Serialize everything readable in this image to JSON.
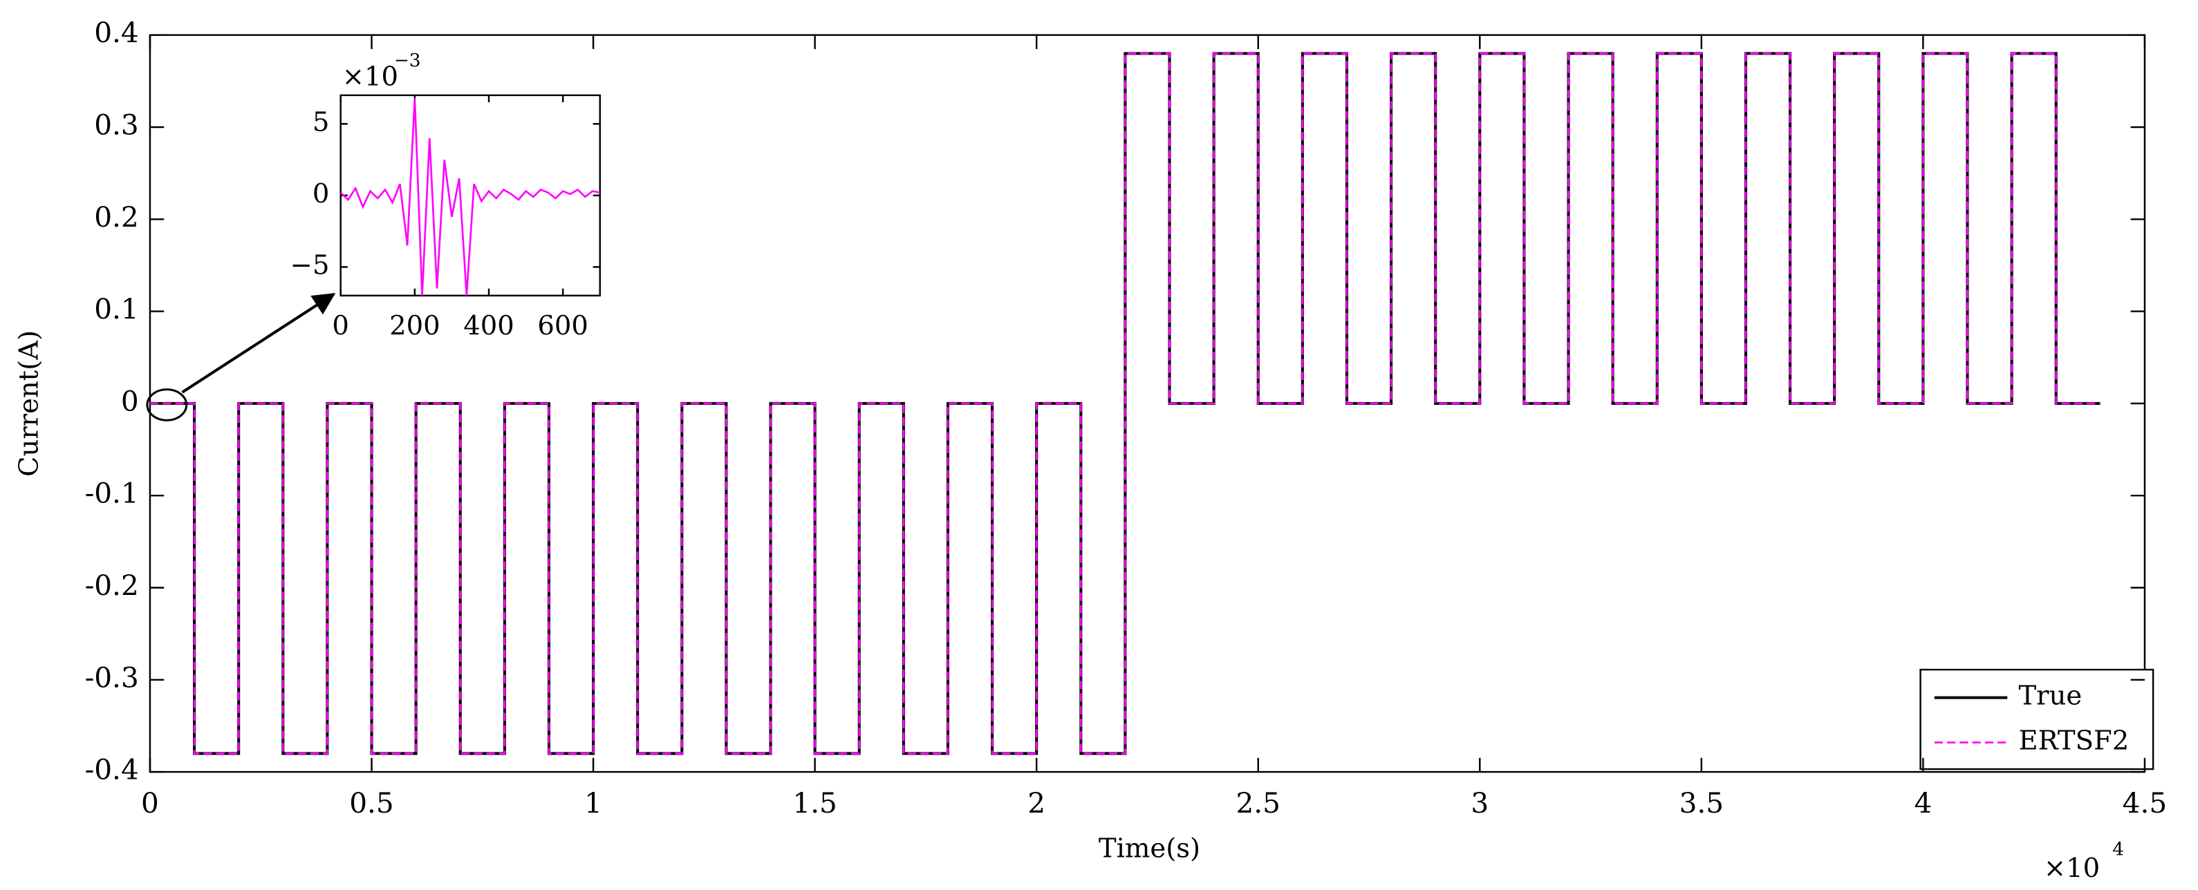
{
  "chart_data": {
    "type": "line",
    "xlabel": "Time(s)",
    "ylabel": "Current(A)",
    "x_multiplier": {
      "base": "×10",
      "exp": "4"
    },
    "xlim": [
      0,
      45000
    ],
    "ylim": [
      -0.4,
      0.4
    ],
    "xticks": [
      0,
      {
        "value": 5000,
        "label": "0.5"
      },
      {
        "value": 10000,
        "label": "1"
      },
      {
        "value": 15000,
        "label": "1.5"
      },
      {
        "value": 20000,
        "label": "2"
      },
      {
        "value": 25000,
        "label": "2.5"
      },
      {
        "value": 30000,
        "label": "3"
      },
      {
        "value": 35000,
        "label": "3.5"
      },
      {
        "value": 40000,
        "label": "4"
      },
      {
        "value": 45000,
        "label": "4.5"
      }
    ],
    "yticks": [
      -0.4,
      -0.3,
      -0.2,
      -0.1,
      0,
      0.1,
      0.2,
      0.3,
      0.4
    ],
    "legend": "lower right",
    "x": [
      0,
      1000,
      1000,
      2000,
      2000,
      3000,
      3000,
      4000,
      4000,
      5000,
      5000,
      6000,
      6000,
      7000,
      7000,
      8000,
      8000,
      9000,
      9000,
      10000,
      10000,
      11000,
      11000,
      12000,
      12000,
      13000,
      13000,
      14000,
      14000,
      15000,
      15000,
      16000,
      16000,
      17000,
      17000,
      18000,
      18000,
      19000,
      19000,
      20000,
      20000,
      21000,
      21000,
      22000,
      22000,
      23000,
      23000,
      24000,
      24000,
      25000,
      25000,
      26000,
      26000,
      27000,
      27000,
      28000,
      28000,
      29000,
      29000,
      30000,
      30000,
      31000,
      31000,
      32000,
      32000,
      33000,
      33000,
      34000,
      34000,
      35000,
      35000,
      36000,
      36000,
      37000,
      37000,
      38000,
      38000,
      39000,
      39000,
      40000,
      40000,
      41000,
      41000,
      42000,
      42000,
      43000,
      43000,
      44000
    ],
    "series": [
      {
        "name": "True",
        "color": "#000000",
        "values": [
          0,
          0,
          -0.38,
          -0.38,
          0,
          0,
          -0.38,
          -0.38,
          0,
          0,
          -0.38,
          -0.38,
          0,
          0,
          -0.38,
          -0.38,
          0,
          0,
          -0.38,
          -0.38,
          0,
          0,
          -0.38,
          -0.38,
          0,
          0,
          -0.38,
          -0.38,
          0,
          0,
          -0.38,
          -0.38,
          0,
          0,
          -0.38,
          -0.38,
          0,
          0,
          -0.38,
          -0.38,
          0,
          0,
          -0.38,
          -0.38,
          0.38,
          0.38,
          0,
          0,
          0.38,
          0.38,
          0,
          0,
          0.38,
          0.38,
          0,
          0,
          0.38,
          0.38,
          0,
          0,
          0.38,
          0.38,
          0,
          0,
          0.38,
          0.38,
          0,
          0,
          0.38,
          0.38,
          0,
          0,
          0.38,
          0.38,
          0,
          0,
          0.38,
          0.38,
          0,
          0,
          0.38,
          0.38,
          0,
          0,
          0.38,
          0.38,
          0,
          0
        ]
      },
      {
        "name": "ERTSF2",
        "color": "#ff00ff",
        "values": [
          0,
          0,
          -0.38,
          -0.38,
          0,
          0,
          -0.38,
          -0.38,
          0,
          0,
          -0.38,
          -0.38,
          0,
          0,
          -0.38,
          -0.38,
          0,
          0,
          -0.38,
          -0.38,
          0,
          0,
          -0.38,
          -0.38,
          0,
          0,
          -0.38,
          -0.38,
          0,
          0,
          -0.38,
          -0.38,
          0,
          0,
          -0.38,
          -0.38,
          0,
          0,
          -0.38,
          -0.38,
          0,
          0,
          -0.38,
          -0.38,
          0.38,
          0.38,
          0,
          0,
          0.38,
          0.38,
          0,
          0,
          0.38,
          0.38,
          0,
          0,
          0.38,
          0.38,
          0,
          0,
          0.38,
          0.38,
          0,
          0,
          0.38,
          0.38,
          0,
          0,
          0.38,
          0.38,
          0,
          0,
          0.38,
          0.38,
          0,
          0,
          0.38,
          0.38,
          0,
          0,
          0.38,
          0.38,
          0,
          0,
          0.38,
          0.38,
          0,
          0
        ]
      }
    ],
    "inset": {
      "y_multiplier": {
        "base": "×10",
        "exp": "−3"
      },
      "xlim": [
        0,
        700
      ],
      "ylim": [
        -0.007,
        0.007
      ],
      "xticks": [
        0,
        200,
        400,
        600
      ],
      "yticks": [
        {
          "value": -0.005,
          "label": "−5"
        },
        0,
        {
          "value": 0.005,
          "label": "5"
        }
      ],
      "color": "#ff00ff",
      "x": [
        0,
        20,
        40,
        60,
        80,
        100,
        120,
        140,
        160,
        180,
        200,
        220,
        240,
        260,
        280,
        300,
        320,
        340,
        360,
        380,
        400,
        420,
        440,
        460,
        480,
        500,
        520,
        540,
        560,
        580,
        600,
        620,
        640,
        660,
        680,
        700
      ],
      "values": [
        0.0002,
        -0.0003,
        0.0005,
        -0.0008,
        0.0003,
        -0.0002,
        0.0004,
        -0.0005,
        0.0008,
        -0.0035,
        0.0068,
        -0.007,
        0.004,
        -0.0065,
        0.0025,
        -0.0015,
        0.0012,
        -0.007,
        0.0008,
        -0.0004,
        0.0003,
        -0.0002,
        0.0004,
        0.0001,
        -0.0003,
        0.0003,
        -0.0001,
        0.0004,
        0.0002,
        -0.0002,
        0.0003,
        0.0001,
        0.0004,
        -0.0001,
        0.0003,
        0.0002
      ]
    }
  }
}
